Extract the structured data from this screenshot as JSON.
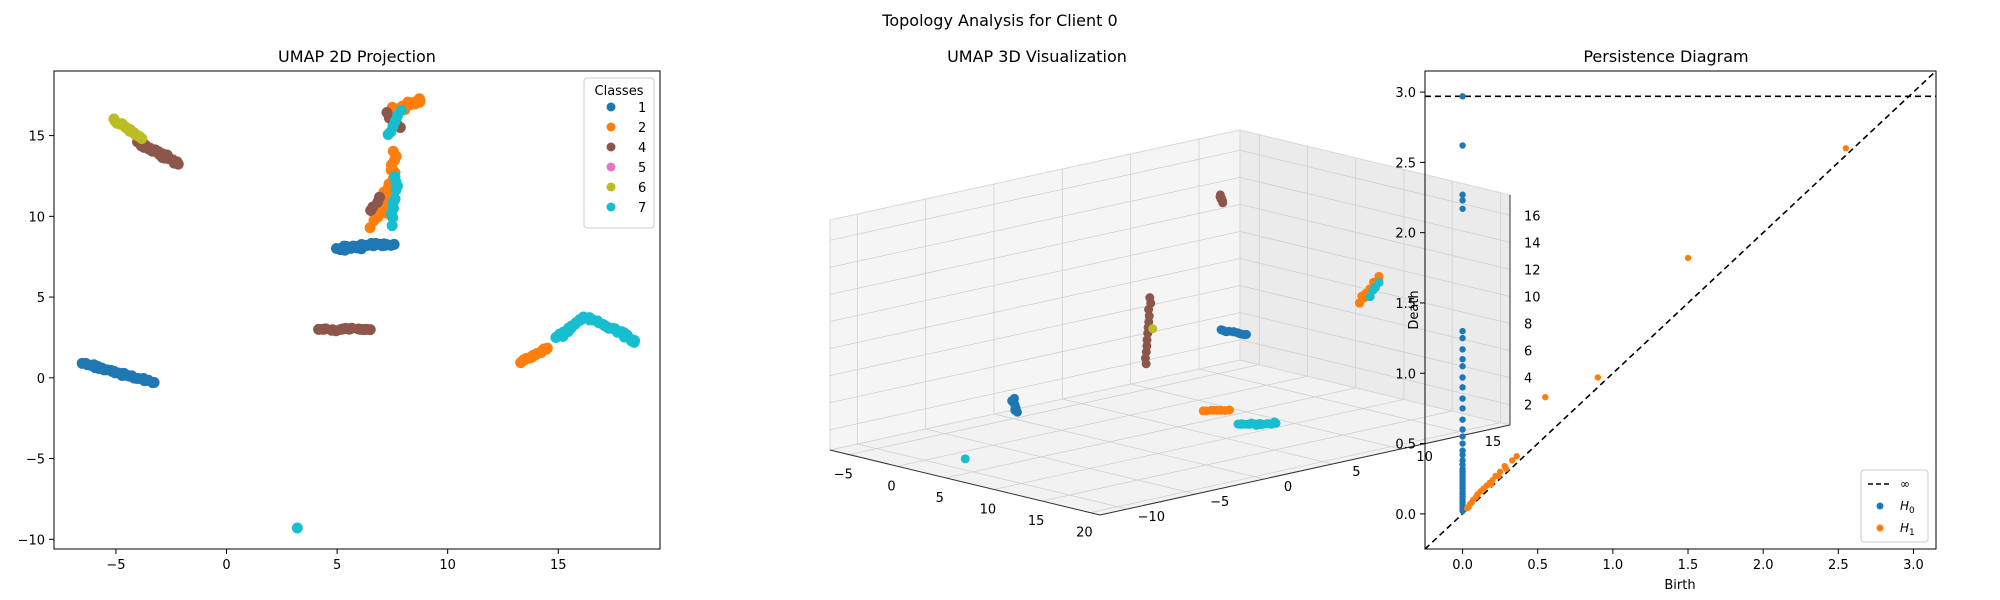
{
  "figure": {
    "title": "Topology Analysis for Client 0"
  },
  "colors": {
    "c1": "#1f77b4",
    "c2": "#ff7f0e",
    "c4": "#8c564b",
    "c5": "#e377c2",
    "c6": "#bcbd22",
    "c7": "#17becf",
    "h0": "#1f77b4",
    "h1": "#ff7f0e"
  },
  "chart_data": [
    {
      "type": "scatter",
      "title": "UMAP 2D Projection",
      "xlim": [
        -7.8,
        19.6
      ],
      "ylim": [
        -10.6,
        19.0
      ],
      "xticks": [
        -5,
        0,
        5,
        10,
        15
      ],
      "yticks": [
        -10,
        -5,
        0,
        5,
        10,
        15
      ],
      "grid": false,
      "legend": {
        "title": "Classes",
        "position": "top-right",
        "entries": [
          "1",
          "2",
          "4",
          "5",
          "6",
          "7"
        ]
      },
      "segments": [
        {
          "cls": "1",
          "from": [
            -6.5,
            0.9
          ],
          "to": [
            -3.3,
            -0.3
          ],
          "n": 30,
          "spread": 0.12
        },
        {
          "cls": "1",
          "from": [
            5.0,
            8.0
          ],
          "to": [
            7.5,
            8.3
          ],
          "n": 26,
          "spread": 0.18
        },
        {
          "cls": "2",
          "from": [
            7.3,
            10.0
          ],
          "to": [
            7.6,
            14.0
          ],
          "n": 18,
          "spread": 0.22
        },
        {
          "cls": "2",
          "from": [
            7.4,
            16.4
          ],
          "to": [
            8.7,
            17.2
          ],
          "n": 26,
          "spread": 0.35
        },
        {
          "cls": "2",
          "from": [
            6.6,
            9.3
          ],
          "to": [
            7.1,
            11.5
          ],
          "n": 8,
          "spread": 0.2
        },
        {
          "cls": "2",
          "from": [
            13.3,
            1.0
          ],
          "to": [
            14.5,
            1.8
          ],
          "n": 16,
          "spread": 0.12
        },
        {
          "cls": "4",
          "from": [
            -4.0,
            14.6
          ],
          "to": [
            -2.2,
            13.3
          ],
          "n": 30,
          "spread": 0.18
        },
        {
          "cls": "4",
          "from": [
            4.2,
            3.0
          ],
          "to": [
            6.5,
            3.0
          ],
          "n": 16,
          "spread": 0.12
        },
        {
          "cls": "4",
          "from": [
            6.6,
            10.3
          ],
          "to": [
            6.9,
            11.2
          ],
          "n": 4,
          "spread": 0.15
        },
        {
          "cls": "4",
          "from": [
            7.2,
            16.4
          ],
          "to": [
            7.8,
            15.4
          ],
          "n": 5,
          "spread": 0.2
        },
        {
          "cls": "6",
          "from": [
            -5.1,
            16.0
          ],
          "to": [
            -3.8,
            14.8
          ],
          "n": 16,
          "spread": 0.1
        },
        {
          "cls": "7",
          "from": [
            15.0,
            2.5
          ],
          "to": [
            16.1,
            3.7
          ],
          "n": 18,
          "spread": 0.2
        },
        {
          "cls": "7",
          "from": [
            16.3,
            3.8
          ],
          "to": [
            18.5,
            2.3
          ],
          "n": 26,
          "spread": 0.2
        },
        {
          "cls": "7",
          "from": [
            7.5,
            9.5
          ],
          "to": [
            7.7,
            12.5
          ],
          "n": 10,
          "spread": 0.15
        },
        {
          "cls": "7",
          "from": [
            7.3,
            15.0
          ],
          "to": [
            7.9,
            16.5
          ],
          "n": 6,
          "spread": 0.2
        },
        {
          "cls": "7",
          "from": [
            3.2,
            -9.3
          ],
          "to": [
            3.2,
            -9.3
          ],
          "n": 1,
          "spread": 0.0
        }
      ]
    },
    {
      "type": "scatter",
      "title": "UMAP 3D Visualization",
      "xticks": [
        -5,
        0,
        5,
        10,
        15,
        20
      ],
      "yticks": [
        -10,
        -5,
        0,
        5,
        10,
        15
      ],
      "zticks": [
        2,
        4,
        6,
        8,
        10,
        12,
        14,
        16
      ],
      "xlim": [
        -7,
        21
      ],
      "ylim": [
        -12,
        18
      ],
      "zlim": [
        0.5,
        17.5
      ],
      "segments": [
        {
          "cls": "1",
          "from": [
            -6.5,
            1.0,
            1.5
          ],
          "to": [
            -3.3,
            -1.0,
            1.5
          ],
          "n": 14,
          "spread": 0.15
        },
        {
          "cls": "1",
          "from": [
            5.0,
            8.0,
            7.0
          ],
          "to": [
            7.5,
            8.3,
            7.0
          ],
          "n": 12,
          "spread": 0.15
        },
        {
          "cls": "2",
          "from": [
            7.4,
            16.5,
            7.5
          ],
          "to": [
            8.6,
            17.2,
            9.5
          ],
          "n": 14,
          "spread": 0.3
        },
        {
          "cls": "2",
          "from": [
            13.3,
            1.0,
            4.0
          ],
          "to": [
            14.5,
            2.0,
            4.0
          ],
          "n": 8,
          "spread": 0.12
        },
        {
          "cls": "4",
          "from": [
            -4.0,
            14.5,
            14.0
          ],
          "to": [
            -2.3,
            13.4,
            14.0
          ],
          "n": 6,
          "spread": 0.1
        },
        {
          "cls": "4",
          "from": [
            4.5,
            3.0,
            5.5
          ],
          "to": [
            4.9,
            3.0,
            10.5
          ],
          "n": 12,
          "spread": 0.1
        },
        {
          "cls": "6",
          "from": [
            4.5,
            3.5,
            8.0
          ],
          "to": [
            4.5,
            3.5,
            8.0
          ],
          "n": 1,
          "spread": 0.0
        },
        {
          "cls": "7",
          "from": [
            15.0,
            2.5,
            3.0
          ],
          "to": [
            18.5,
            2.5,
            3.6
          ],
          "n": 20,
          "spread": 0.35
        },
        {
          "cls": "7",
          "from": [
            7.8,
            17.0,
            8.0
          ],
          "to": [
            8.2,
            17.4,
            9.0
          ],
          "n": 4,
          "spread": 0.2
        },
        {
          "cls": "7",
          "from": [
            3.2,
            -9.3,
            1.0
          ],
          "to": [
            3.2,
            -9.3,
            1.0
          ],
          "n": 1,
          "spread": 0.0
        }
      ]
    },
    {
      "type": "scatter",
      "title": "Persistence Diagram",
      "xlabel": "Birth",
      "ylabel": "Death",
      "xlim": [
        -0.25,
        3.15
      ],
      "ylim": [
        -0.25,
        3.15
      ],
      "xticks": [
        0.0,
        0.5,
        1.0,
        1.5,
        2.0,
        2.5,
        3.0
      ],
      "yticks": [
        0.0,
        0.5,
        1.0,
        1.5,
        2.0,
        2.5,
        3.0
      ],
      "infinity_level": 2.97,
      "legend": {
        "position": "bottom-right",
        "infinity_label": "∞",
        "h0_base": "H",
        "h0_sub": "0",
        "h1_base": "H",
        "h1_sub": "1"
      },
      "h0_death": [
        2.97,
        2.62,
        2.27,
        2.23,
        2.17,
        1.3,
        1.25,
        1.17,
        1.1,
        1.05,
        0.97,
        0.9,
        0.82,
        0.75,
        0.67,
        0.6,
        0.55,
        0.5,
        0.45,
        0.42,
        0.38,
        0.35,
        0.32,
        0.3,
        0.28,
        0.26,
        0.24,
        0.22,
        0.2,
        0.18,
        0.16,
        0.14,
        0.12,
        0.1,
        0.08,
        0.06,
        0.04,
        0.02
      ],
      "h1_points": [
        [
          2.55,
          2.6
        ],
        [
          1.5,
          1.82
        ],
        [
          0.9,
          0.97
        ],
        [
          0.55,
          0.83
        ],
        [
          0.36,
          0.41
        ],
        [
          0.33,
          0.38
        ],
        [
          0.28,
          0.34
        ],
        [
          0.25,
          0.3
        ],
        [
          0.22,
          0.27
        ],
        [
          0.2,
          0.24
        ],
        [
          0.18,
          0.22
        ],
        [
          0.16,
          0.2
        ],
        [
          0.14,
          0.18
        ],
        [
          0.12,
          0.16
        ],
        [
          0.1,
          0.14
        ],
        [
          0.09,
          0.12
        ],
        [
          0.07,
          0.1
        ],
        [
          0.06,
          0.08
        ],
        [
          0.05,
          0.07
        ],
        [
          0.04,
          0.05
        ],
        [
          0.03,
          0.04
        ],
        [
          0.24,
          0.27
        ],
        [
          0.19,
          0.21
        ],
        [
          0.29,
          0.32
        ]
      ]
    }
  ]
}
